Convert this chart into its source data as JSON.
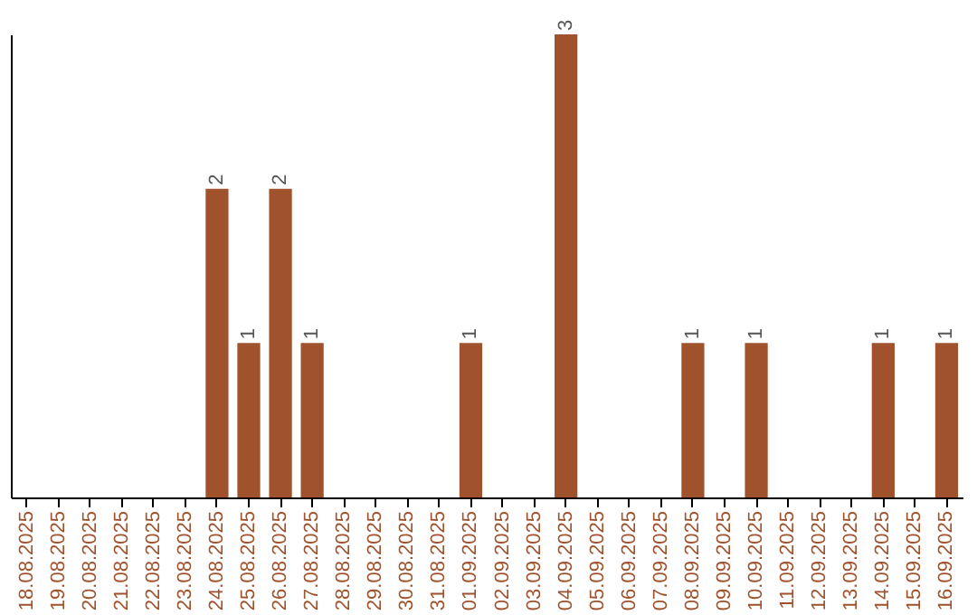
{
  "chart_data": {
    "type": "bar",
    "categories": [
      "18.08.2025",
      "19.08.2025",
      "20.08.2025",
      "21.08.2025",
      "22.08.2025",
      "23.08.2025",
      "24.08.2025",
      "25.08.2025",
      "26.08.2025",
      "27.08.2025",
      "28.08.2025",
      "29.08.2025",
      "30.08.2025",
      "31.08.2025",
      "01.09.2025",
      "02.09.2025",
      "03.09.2025",
      "04.09.2025",
      "05.09.2025",
      "06.09.2025",
      "07.09.2025",
      "08.09.2025",
      "09.09.2025",
      "10.09.2025",
      "11.09.2025",
      "12.09.2025",
      "13.09.2025",
      "14.09.2025",
      "15.09.2025",
      "16.09.2025"
    ],
    "values": [
      0,
      0,
      0,
      0,
      0,
      0,
      2,
      1,
      2,
      1,
      0,
      0,
      0,
      0,
      1,
      0,
      0,
      3,
      0,
      0,
      0,
      1,
      0,
      1,
      0,
      0,
      0,
      1,
      0,
      1
    ],
    "value_labels": [
      null,
      null,
      null,
      null,
      null,
      null,
      "2",
      "1",
      "2",
      "1",
      null,
      null,
      null,
      null,
      "1",
      null,
      null,
      "3",
      null,
      null,
      null,
      "1",
      null,
      "1",
      null,
      null,
      null,
      "1",
      null,
      "1"
    ],
    "color": "#a0522d",
    "grid": false,
    "tick_labels": "x"
  }
}
